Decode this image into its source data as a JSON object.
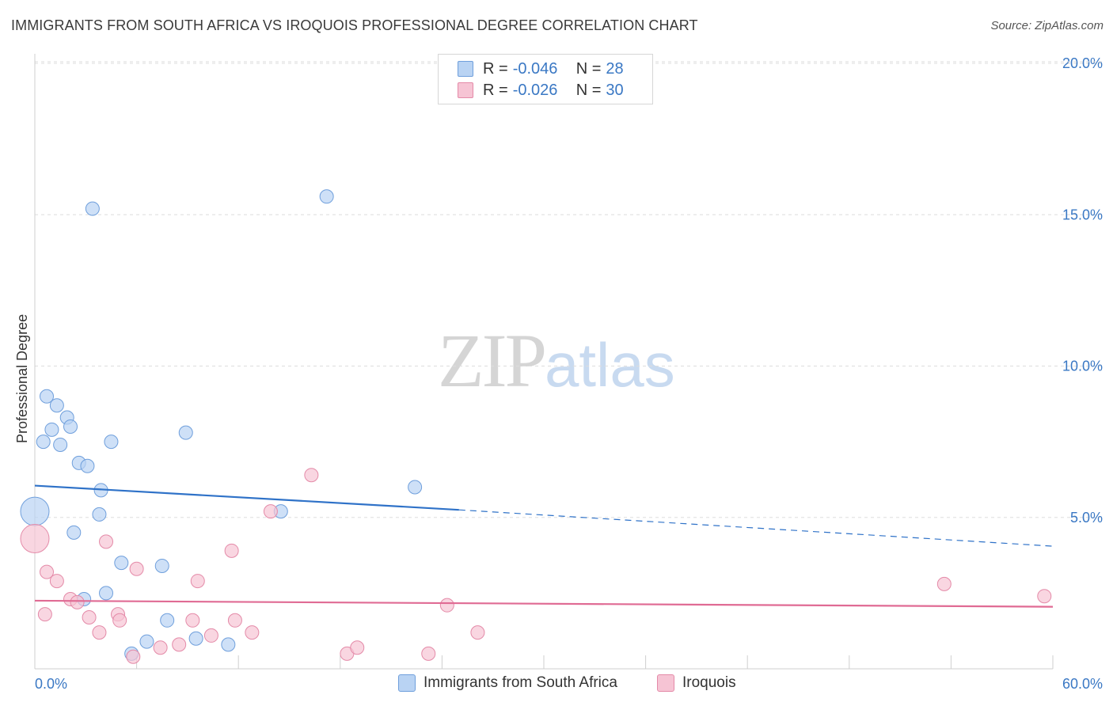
{
  "header": {
    "title": "IMMIGRANTS FROM SOUTH AFRICA VS IROQUOIS PROFESSIONAL DEGREE CORRELATION CHART",
    "source": "Source: ZipAtlas.com"
  },
  "legend": {
    "rows": [
      {
        "r_label": "R = ",
        "r_value": "-0.046",
        "n_label": "N = ",
        "n_value": "28"
      },
      {
        "r_label": "R = ",
        "r_value": "-0.026",
        "n_label": "N = ",
        "n_value": "30"
      }
    ]
  },
  "bottom_legend": {
    "series_a": "Immigrants from South Africa",
    "series_b": "Iroquois"
  },
  "watermark": {
    "zip": "ZIP",
    "atlas": "atlas"
  },
  "colors": {
    "blue_fill": "#b9d3f3",
    "blue_stroke": "#6f9fdc",
    "blue_line": "#2f72c8",
    "pink_fill": "#f6c4d4",
    "pink_stroke": "#e48aa8",
    "pink_line": "#e06b94",
    "tick_text": "#3a78c4",
    "grid": "#dddddd"
  },
  "chart_data": {
    "type": "scatter",
    "title": "IMMIGRANTS FROM SOUTH AFRICA VS IROQUOIS PROFESSIONAL DEGREE CORRELATION CHART",
    "xlabel": "",
    "ylabel": "Professional Degree",
    "xlim": [
      0,
      60
    ],
    "ylim": [
      0,
      20
    ],
    "x_ticks": [
      "0.0%",
      "60.0%"
    ],
    "y_ticks": [
      {
        "value": 5,
        "label": "5.0%"
      },
      {
        "value": 10,
        "label": "10.0%"
      },
      {
        "value": 15,
        "label": "15.0%"
      },
      {
        "value": 20,
        "label": "20.0%"
      }
    ],
    "grid": true,
    "legend_position": "top-center",
    "series": [
      {
        "name": "Immigrants from South Africa",
        "color": "blue",
        "points": [
          [
            0.0,
            5.2,
            "large"
          ],
          [
            0.5,
            7.5
          ],
          [
            0.7,
            9.0
          ],
          [
            1.0,
            7.9
          ],
          [
            1.3,
            8.7
          ],
          [
            1.5,
            7.4
          ],
          [
            1.9,
            8.3
          ],
          [
            2.1,
            8.0
          ],
          [
            2.3,
            4.5
          ],
          [
            2.6,
            6.8
          ],
          [
            2.9,
            2.3
          ],
          [
            3.1,
            6.7
          ],
          [
            3.4,
            15.2
          ],
          [
            3.8,
            5.1
          ],
          [
            3.9,
            5.9
          ],
          [
            4.2,
            2.5
          ],
          [
            4.5,
            7.5
          ],
          [
            5.1,
            3.5
          ],
          [
            5.7,
            0.5
          ],
          [
            6.6,
            0.9
          ],
          [
            7.5,
            3.4
          ],
          [
            7.8,
            1.6
          ],
          [
            8.9,
            7.8
          ],
          [
            9.5,
            1.0
          ],
          [
            11.4,
            0.8
          ],
          [
            14.5,
            5.2
          ],
          [
            17.2,
            15.6
          ],
          [
            22.4,
            6.0
          ]
        ]
      },
      {
        "name": "Iroquois",
        "color": "pink",
        "points": [
          [
            0.0,
            4.3,
            "large"
          ],
          [
            0.6,
            1.8
          ],
          [
            0.7,
            3.2
          ],
          [
            1.3,
            2.9
          ],
          [
            2.1,
            2.3
          ],
          [
            2.5,
            2.2
          ],
          [
            3.2,
            1.7
          ],
          [
            3.8,
            1.2
          ],
          [
            4.2,
            4.2
          ],
          [
            4.9,
            1.8
          ],
          [
            5.0,
            1.6
          ],
          [
            5.8,
            0.4
          ],
          [
            6.0,
            3.3
          ],
          [
            7.4,
            0.7
          ],
          [
            8.5,
            0.8
          ],
          [
            9.3,
            1.6
          ],
          [
            9.6,
            2.9
          ],
          [
            10.4,
            1.1
          ],
          [
            11.6,
            3.9
          ],
          [
            11.8,
            1.6
          ],
          [
            12.8,
            1.2
          ],
          [
            13.9,
            5.2
          ],
          [
            16.3,
            6.4
          ],
          [
            18.4,
            0.5
          ],
          [
            19.0,
            0.7
          ],
          [
            23.2,
            0.5
          ],
          [
            24.3,
            2.1
          ],
          [
            26.1,
            1.2
          ],
          [
            53.6,
            2.8
          ],
          [
            59.5,
            2.4
          ]
        ]
      }
    ],
    "trend_lines": [
      {
        "series": "Immigrants from South Africa",
        "x0": 0,
        "y0": 6.05,
        "x1": 25,
        "y1": 5.25,
        "dashed_to_x": 60,
        "dashed_to_y": 4.05
      },
      {
        "series": "Iroquois",
        "x0": 0,
        "y0": 2.25,
        "x1": 60,
        "y1": 2.05
      }
    ]
  },
  "texts": {
    "x_min_label": "0.0%",
    "x_max_label": "60.0%"
  }
}
